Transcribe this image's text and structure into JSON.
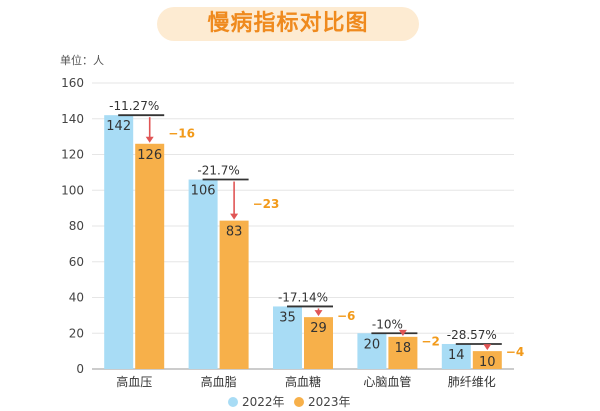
{
  "title": "慢病指标对比图",
  "unit_label": "单位：人",
  "colors": {
    "series_2022": "#a8dcf5",
    "series_2023": "#f7b04a",
    "change_label": "#f29a1a",
    "arrow": "#e05555",
    "title_text": "#ef8a1e",
    "title_bg": "#fdebd2"
  },
  "chart_data": {
    "type": "bar",
    "categories": [
      "高血压",
      "高血脂",
      "高血糖",
      "心脑血管",
      "肺纤维化"
    ],
    "series": [
      {
        "name": "2022年",
        "values": [
          142,
          106,
          35,
          20,
          14
        ]
      },
      {
        "name": "2023年",
        "values": [
          126,
          83,
          29,
          18,
          10
        ]
      }
    ],
    "pct_change_labels": [
      "-11.27%",
      "-21.7%",
      "-17.14%",
      "-10%",
      "-28.57%"
    ],
    "abs_change_labels": [
      "−16",
      "−23",
      "−6",
      "−2",
      "−4"
    ],
    "ylim": [
      0,
      160
    ],
    "yticks": [
      0,
      20,
      40,
      60,
      80,
      100,
      120,
      140,
      160
    ],
    "grid": true,
    "legend_position": "bottom"
  }
}
